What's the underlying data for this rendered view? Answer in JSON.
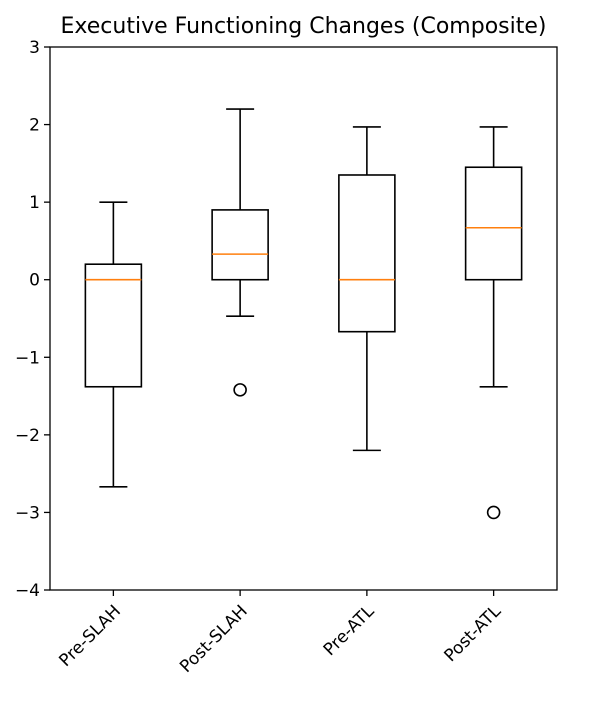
{
  "chart_data": {
    "type": "box",
    "title": "Executive Functioning Changes (Composite)",
    "xlabel": "",
    "ylabel": "",
    "ylim": [
      -4,
      3
    ],
    "yticks": [
      -4,
      -3,
      -2,
      -1,
      0,
      1,
      2,
      3
    ],
    "grid": false,
    "categories": [
      "Pre-SLAH",
      "Post-SLAH",
      "Pre-ATL",
      "Post-ATL"
    ],
    "boxes": [
      {
        "label": "Pre-SLAH",
        "whisker_low": -2.67,
        "q1": -1.38,
        "median": 0.0,
        "q3": 0.2,
        "whisker_high": 1.0,
        "outliers": []
      },
      {
        "label": "Post-SLAH",
        "whisker_low": -0.47,
        "q1": 0.0,
        "median": 0.33,
        "q3": 0.9,
        "whisker_high": 2.2,
        "outliers": [
          -1.42
        ]
      },
      {
        "label": "Pre-ATL",
        "whisker_low": -2.2,
        "q1": -0.67,
        "median": 0.0,
        "q3": 1.35,
        "whisker_high": 1.97,
        "outliers": []
      },
      {
        "label": "Post-ATL",
        "whisker_low": -1.38,
        "q1": 0.0,
        "median": 0.67,
        "q3": 1.45,
        "whisker_high": 1.97,
        "outliers": [
          -3.0
        ]
      }
    ],
    "colors": {
      "box": "#000000",
      "median": "#ff7f0e",
      "axes": "#000000"
    }
  }
}
